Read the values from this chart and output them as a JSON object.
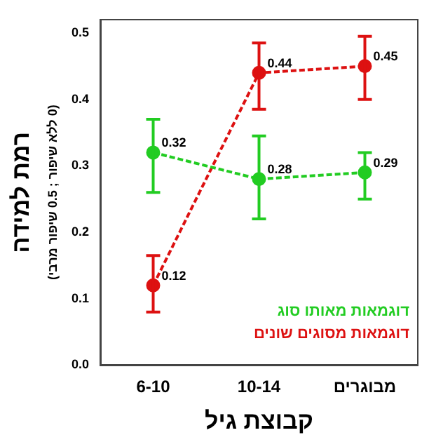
{
  "chart_data": {
    "type": "line",
    "xlabel": "קבוצת גיל",
    "ylabel": "רמת למידה",
    "annotations": [
      "(0 ללא שיפור ; 0.5 שיפור מרבי)"
    ],
    "categories": [
      "6-10",
      "10-14",
      "מבוגרים"
    ],
    "ylim": [
      0,
      0.52
    ],
    "yticks": [
      {
        "value": 0,
        "label": "0.0"
      },
      {
        "value": 0.1,
        "label": "0.1"
      },
      {
        "value": 0.2,
        "label": "0.2"
      },
      {
        "value": 0.3,
        "label": "0.3"
      },
      {
        "value": 0.4,
        "label": "0.4"
      },
      {
        "value": 0.5,
        "label": "0.5"
      }
    ],
    "series": [
      {
        "name": "דוגמאות מאותו סוג",
        "color": "#22cc22",
        "values": [
          0.32,
          0.28,
          0.29
        ],
        "errors": [
          [
            0.26,
            0.37
          ],
          [
            0.22,
            0.345
          ],
          [
            0.25,
            0.32
          ]
        ]
      },
      {
        "name": "דוגמאות מסוגים שונים",
        "color": "#dd1111",
        "values": [
          0.12,
          0.44,
          0.45
        ],
        "errors": [
          [
            0.08,
            0.165
          ],
          [
            0.385,
            0.485
          ],
          [
            0.4,
            0.495
          ]
        ]
      }
    ],
    "data_labels": true,
    "grid": false,
    "legend": "bottom right",
    "marker": "circle",
    "line_style": "dashed"
  }
}
